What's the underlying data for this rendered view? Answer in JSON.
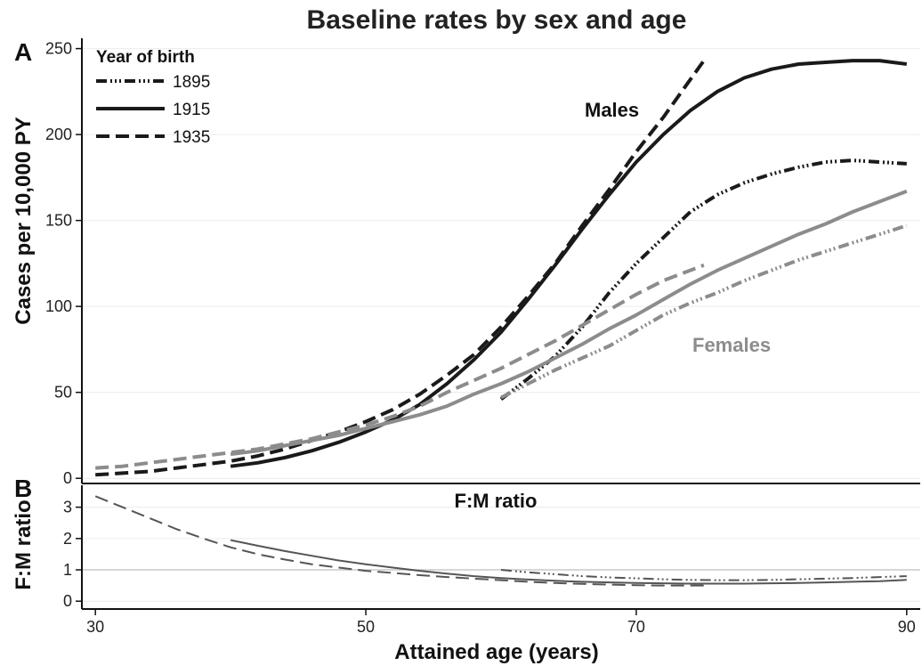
{
  "title": "Baseline rates by sex and age",
  "xlabel": "Attained age (years)",
  "colors": {
    "males": "#1a1a1a",
    "females": "#8c8c8c",
    "ratio": "#555555",
    "ref_line": "#c8c8c8",
    "grid": "#ececec"
  },
  "chart_data": [
    {
      "panel_label": "A",
      "type": "line",
      "ylabel": "Cases per 10,000 PY",
      "xlim": [
        29,
        91
      ],
      "ylim": [
        -3,
        256
      ],
      "xticks": [
        30,
        50,
        70,
        90
      ],
      "yticks": [
        0,
        50,
        100,
        150,
        200,
        250
      ],
      "grid": true,
      "legend": {
        "title": "Year of birth",
        "position": "top-left",
        "entries": [
          "1895",
          "1915",
          "1935"
        ]
      },
      "annotations": [
        {
          "text": "Males",
          "group": "males"
        },
        {
          "text": "Females",
          "group": "females"
        }
      ],
      "series": [
        {
          "legend": "1895",
          "group": "males",
          "dash": "dashdot",
          "points": [
            [
              60,
              46
            ],
            [
              62,
              58
            ],
            [
              64,
              71
            ],
            [
              66,
              88
            ],
            [
              68,
              108
            ],
            [
              70,
              125
            ],
            [
              72,
              140
            ],
            [
              74,
              155
            ],
            [
              76,
              165
            ],
            [
              78,
              172
            ],
            [
              80,
              177
            ],
            [
              82,
              181
            ],
            [
              84,
              184
            ],
            [
              86,
              185
            ],
            [
              88,
              184
            ],
            [
              90,
              183
            ]
          ]
        },
        {
          "legend": "1915",
          "group": "males",
          "dash": "solid",
          "points": [
            [
              40,
              7
            ],
            [
              42,
              9
            ],
            [
              44,
              12
            ],
            [
              46,
              16
            ],
            [
              48,
              21
            ],
            [
              50,
              27
            ],
            [
              52,
              34
            ],
            [
              54,
              43
            ],
            [
              56,
              55
            ],
            [
              58,
              69
            ],
            [
              60,
              85
            ],
            [
              62,
              104
            ],
            [
              64,
              124
            ],
            [
              66,
              145
            ],
            [
              68,
              165
            ],
            [
              70,
              184
            ],
            [
              72,
              200
            ],
            [
              74,
              214
            ],
            [
              76,
              225
            ],
            [
              78,
              233
            ],
            [
              80,
              238
            ],
            [
              82,
              241
            ],
            [
              84,
              242
            ],
            [
              86,
              243
            ],
            [
              88,
              243
            ],
            [
              90,
              241
            ]
          ]
        },
        {
          "legend": "1935",
          "group": "males",
          "dash": "dashed",
          "points": [
            [
              30,
              2
            ],
            [
              32,
              3
            ],
            [
              34,
              4
            ],
            [
              36,
              6
            ],
            [
              38,
              8
            ],
            [
              40,
              10
            ],
            [
              42,
              13
            ],
            [
              44,
              17
            ],
            [
              46,
              22
            ],
            [
              48,
              27
            ],
            [
              50,
              33
            ],
            [
              52,
              40
            ],
            [
              54,
              49
            ],
            [
              56,
              60
            ],
            [
              58,
              72
            ],
            [
              60,
              88
            ],
            [
              62,
              106
            ],
            [
              64,
              125
            ],
            [
              66,
              147
            ],
            [
              68,
              168
            ],
            [
              70,
              190
            ],
            [
              72,
              210
            ],
            [
              74,
              232
            ],
            [
              75,
              243
            ]
          ]
        },
        {
          "legend": "1895",
          "group": "females",
          "dash": "dashdot",
          "points": [
            [
              60,
              47
            ],
            [
              62,
              55
            ],
            [
              64,
              63
            ],
            [
              66,
              70
            ],
            [
              68,
              77
            ],
            [
              70,
              86
            ],
            [
              72,
              95
            ],
            [
              74,
              102
            ],
            [
              76,
              108
            ],
            [
              78,
              115
            ],
            [
              80,
              121
            ],
            [
              82,
              127
            ],
            [
              84,
              132
            ],
            [
              86,
              137
            ],
            [
              88,
              142
            ],
            [
              90,
              147
            ]
          ]
        },
        {
          "legend": "1915",
          "group": "females",
          "dash": "solid",
          "points": [
            [
              40,
              14
            ],
            [
              42,
              16
            ],
            [
              44,
              19
            ],
            [
              46,
              22
            ],
            [
              48,
              25
            ],
            [
              50,
              29
            ],
            [
              52,
              33
            ],
            [
              54,
              37
            ],
            [
              56,
              42
            ],
            [
              58,
              49
            ],
            [
              60,
              55
            ],
            [
              62,
              62
            ],
            [
              64,
              70
            ],
            [
              66,
              78
            ],
            [
              68,
              87
            ],
            [
              70,
              95
            ],
            [
              72,
              104
            ],
            [
              74,
              113
            ],
            [
              76,
              121
            ],
            [
              78,
              128
            ],
            [
              80,
              135
            ],
            [
              82,
              142
            ],
            [
              84,
              148
            ],
            [
              86,
              155
            ],
            [
              88,
              161
            ],
            [
              90,
              167
            ]
          ]
        },
        {
          "legend": "1935",
          "group": "females",
          "dash": "dashed",
          "points": [
            [
              30,
              6
            ],
            [
              32,
              7
            ],
            [
              34,
              9
            ],
            [
              36,
              11
            ],
            [
              38,
              13
            ],
            [
              40,
              15
            ],
            [
              42,
              17
            ],
            [
              44,
              20
            ],
            [
              46,
              23
            ],
            [
              48,
              27
            ],
            [
              50,
              31
            ],
            [
              52,
              36
            ],
            [
              54,
              42
            ],
            [
              56,
              50
            ],
            [
              58,
              57
            ],
            [
              60,
              64
            ],
            [
              62,
              72
            ],
            [
              64,
              80
            ],
            [
              66,
              89
            ],
            [
              68,
              98
            ],
            [
              70,
              107
            ],
            [
              72,
              115
            ],
            [
              74,
              121
            ],
            [
              75,
              124
            ]
          ]
        }
      ]
    },
    {
      "panel_label": "B",
      "type": "line",
      "title": "F:M ratio",
      "ylabel": "F:M ratio",
      "xlim": [
        29,
        91
      ],
      "ylim": [
        -0.25,
        3.7
      ],
      "xticks": [
        30,
        50,
        70,
        90
      ],
      "yticks": [
        0,
        1,
        2,
        3
      ],
      "grid": true,
      "reference_line": 1,
      "series": [
        {
          "legend": "1895",
          "dash": "dashdot",
          "points": [
            [
              60,
              1.0
            ],
            [
              62,
              0.92
            ],
            [
              64,
              0.86
            ],
            [
              66,
              0.8
            ],
            [
              68,
              0.76
            ],
            [
              70,
              0.73
            ],
            [
              72,
              0.7
            ],
            [
              74,
              0.68
            ],
            [
              76,
              0.67
            ],
            [
              78,
              0.67
            ],
            [
              80,
              0.68
            ],
            [
              82,
              0.7
            ],
            [
              84,
              0.72
            ],
            [
              86,
              0.74
            ],
            [
              88,
              0.77
            ],
            [
              90,
              0.8
            ]
          ]
        },
        {
          "legend": "1915",
          "dash": "solid",
          "points": [
            [
              40,
              1.95
            ],
            [
              42,
              1.77
            ],
            [
              44,
              1.6
            ],
            [
              46,
              1.45
            ],
            [
              48,
              1.3
            ],
            [
              50,
              1.18
            ],
            [
              52,
              1.07
            ],
            [
              54,
              0.97
            ],
            [
              56,
              0.88
            ],
            [
              58,
              0.8
            ],
            [
              60,
              0.74
            ],
            [
              62,
              0.69
            ],
            [
              64,
              0.65
            ],
            [
              66,
              0.62
            ],
            [
              68,
              0.6
            ],
            [
              70,
              0.58
            ],
            [
              72,
              0.57
            ],
            [
              74,
              0.56
            ],
            [
              76,
              0.56
            ],
            [
              78,
              0.56
            ],
            [
              80,
              0.57
            ],
            [
              82,
              0.58
            ],
            [
              84,
              0.6
            ],
            [
              86,
              0.62
            ],
            [
              88,
              0.64
            ],
            [
              90,
              0.68
            ]
          ]
        },
        {
          "legend": "1935",
          "dash": "dashed",
          "points": [
            [
              30,
              3.35
            ],
            [
              32,
              3.0
            ],
            [
              34,
              2.65
            ],
            [
              36,
              2.3
            ],
            [
              38,
              2.0
            ],
            [
              40,
              1.72
            ],
            [
              42,
              1.5
            ],
            [
              44,
              1.33
            ],
            [
              46,
              1.18
            ],
            [
              48,
              1.07
            ],
            [
              50,
              0.97
            ],
            [
              52,
              0.9
            ],
            [
              54,
              0.83
            ],
            [
              56,
              0.77
            ],
            [
              58,
              0.72
            ],
            [
              60,
              0.67
            ],
            [
              62,
              0.62
            ],
            [
              64,
              0.58
            ],
            [
              66,
              0.55
            ],
            [
              68,
              0.53
            ],
            [
              70,
              0.51
            ],
            [
              72,
              0.5
            ],
            [
              74,
              0.5
            ],
            [
              75,
              0.5
            ]
          ]
        }
      ]
    }
  ]
}
